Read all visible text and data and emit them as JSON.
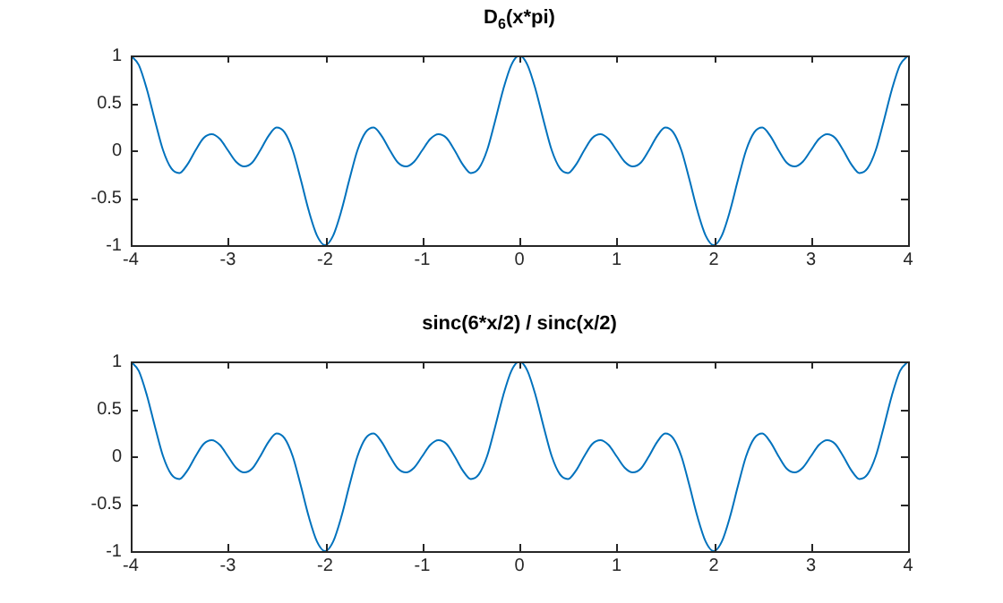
{
  "chart_data": [
    {
      "type": "line",
      "title": "D$_{6}$(x*pi)",
      "x": [
        -4,
        -3.917,
        -3.833,
        -3.75,
        -3.667,
        -3.583,
        -3.5,
        -3.417,
        -3.333,
        -3.25,
        -3.167,
        -3.083,
        -3,
        -2.917,
        -2.833,
        -2.75,
        -2.667,
        -2.583,
        -2.5,
        -2.417,
        -2.333,
        -2.25,
        -2.167,
        -2.083,
        -2,
        -1.917,
        -1.833,
        -1.75,
        -1.667,
        -1.583,
        -1.5,
        -1.417,
        -1.333,
        -1.25,
        -1.167,
        -1.083,
        -1,
        -0.917,
        -0.833,
        -0.75,
        -0.667,
        -0.583,
        -0.5,
        -0.417,
        -0.333,
        -0.25,
        -0.167,
        -0.083,
        0,
        0.083,
        0.167,
        0.25,
        0.333,
        0.417,
        0.5,
        0.583,
        0.667,
        0.75,
        0.833,
        0.917,
        1,
        1.083,
        1.167,
        1.25,
        1.333,
        1.417,
        1.5,
        1.583,
        1.667,
        1.75,
        1.833,
        1.917,
        2,
        2.083,
        2.167,
        2.25,
        2.333,
        2.417,
        2.5,
        2.583,
        2.667,
        2.75,
        2.833,
        2.917,
        3,
        3.083,
        3.167,
        3.25,
        3.333,
        3.417,
        3.5,
        3.583,
        3.667,
        3.75,
        3.833,
        3.917,
        4
      ],
      "series": [
        {
          "color": "#0072bd",
          "values": [
            1,
            0.9,
            0.64,
            0.31,
            0,
            -0.19,
            -0.24,
            -0.15,
            0,
            0.13,
            0.17,
            0.12,
            0,
            -0.12,
            -0.17,
            -0.13,
            0,
            0.15,
            0.24,
            0.19,
            0,
            -0.31,
            -0.64,
            -0.9,
            -1,
            -0.9,
            -0.64,
            -0.31,
            0,
            0.19,
            0.24,
            0.15,
            0,
            -0.13,
            -0.17,
            -0.12,
            0,
            0.12,
            0.17,
            0.13,
            0,
            -0.15,
            -0.24,
            -0.19,
            0,
            0.31,
            0.64,
            0.9,
            1,
            0.9,
            0.64,
            0.31,
            0,
            -0.19,
            -0.24,
            -0.15,
            0,
            0.13,
            0.17,
            0.12,
            0,
            -0.12,
            -0.17,
            -0.13,
            0,
            0.15,
            0.24,
            0.19,
            0,
            -0.31,
            -0.64,
            -0.9,
            -1,
            -0.9,
            -0.64,
            -0.31,
            0,
            0.19,
            0.24,
            0.15,
            0,
            -0.13,
            -0.17,
            -0.12,
            0,
            0.12,
            0.17,
            0.13,
            0,
            -0.15,
            -0.24,
            -0.19,
            0,
            0.31,
            0.64,
            0.9,
            1
          ]
        }
      ],
      "xlim": [
        -4,
        4
      ],
      "xticks": [
        -4,
        -3,
        -2,
        -1,
        0,
        1,
        2,
        3,
        4
      ],
      "ylim": [
        -1,
        1
      ],
      "yticks": [
        -1,
        -0.5,
        0,
        0.5,
        1
      ]
    },
    {
      "type": "line",
      "title": "sinc(6*x/2) / sinc(x/2)",
      "x": [
        -4,
        -3.917,
        -3.833,
        -3.75,
        -3.667,
        -3.583,
        -3.5,
        -3.417,
        -3.333,
        -3.25,
        -3.167,
        -3.083,
        -3,
        -2.917,
        -2.833,
        -2.75,
        -2.667,
        -2.583,
        -2.5,
        -2.417,
        -2.333,
        -2.25,
        -2.167,
        -2.083,
        -2,
        -1.917,
        -1.833,
        -1.75,
        -1.667,
        -1.583,
        -1.5,
        -1.417,
        -1.333,
        -1.25,
        -1.167,
        -1.083,
        -1,
        -0.917,
        -0.833,
        -0.75,
        -0.667,
        -0.583,
        -0.5,
        -0.417,
        -0.333,
        -0.25,
        -0.167,
        -0.083,
        0,
        0.083,
        0.167,
        0.25,
        0.333,
        0.417,
        0.5,
        0.583,
        0.667,
        0.75,
        0.833,
        0.917,
        1,
        1.083,
        1.167,
        1.25,
        1.333,
        1.417,
        1.5,
        1.583,
        1.667,
        1.75,
        1.833,
        1.917,
        2,
        2.083,
        2.167,
        2.25,
        2.333,
        2.417,
        2.5,
        2.583,
        2.667,
        2.75,
        2.833,
        2.917,
        3,
        3.083,
        3.167,
        3.25,
        3.333,
        3.417,
        3.5,
        3.583,
        3.667,
        3.75,
        3.833,
        3.917,
        4
      ],
      "series": [
        {
          "color": "#0072bd",
          "values": [
            1,
            0.9,
            0.64,
            0.31,
            0,
            -0.19,
            -0.24,
            -0.15,
            0,
            0.13,
            0.17,
            0.12,
            0,
            -0.12,
            -0.17,
            -0.13,
            0,
            0.15,
            0.24,
            0.19,
            0,
            -0.31,
            -0.64,
            -0.9,
            -1,
            -0.9,
            -0.64,
            -0.31,
            0,
            0.19,
            0.24,
            0.15,
            0,
            -0.13,
            -0.17,
            -0.12,
            0,
            0.12,
            0.17,
            0.13,
            0,
            -0.15,
            -0.24,
            -0.19,
            0,
            0.31,
            0.64,
            0.9,
            1,
            0.9,
            0.64,
            0.31,
            0,
            -0.19,
            -0.24,
            -0.15,
            0,
            0.13,
            0.17,
            0.12,
            0,
            -0.12,
            -0.17,
            -0.13,
            0,
            0.15,
            0.24,
            0.19,
            0,
            -0.31,
            -0.64,
            -0.9,
            -1,
            -0.9,
            -0.64,
            -0.31,
            0,
            0.19,
            0.24,
            0.15,
            0,
            -0.13,
            -0.17,
            -0.12,
            0,
            0.12,
            0.17,
            0.13,
            0,
            -0.15,
            -0.24,
            -0.19,
            0,
            0.31,
            0.64,
            0.9,
            1
          ]
        }
      ],
      "xlim": [
        -4,
        4
      ],
      "xticks": [
        -4,
        -3,
        -2,
        -1,
        0,
        1,
        2,
        3,
        4
      ],
      "ylim": [
        -1,
        1
      ],
      "yticks": [
        -1,
        -0.5,
        0,
        0.5,
        1
      ]
    }
  ]
}
